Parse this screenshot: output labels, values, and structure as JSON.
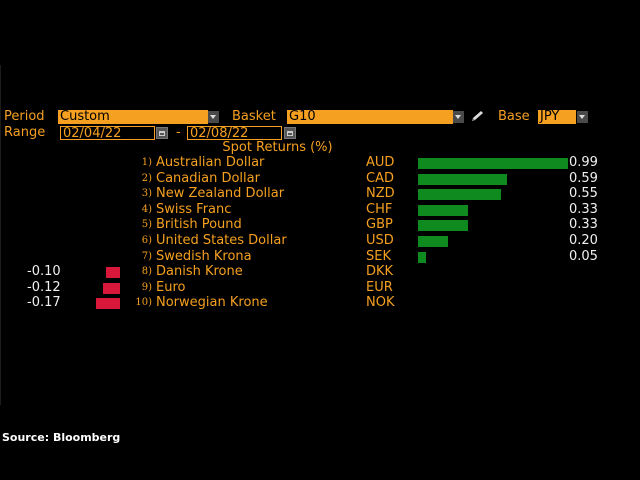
{
  "header": {
    "period_label": "Period",
    "period_value": "Custom",
    "basket_label": "Basket",
    "basket_value": "G10",
    "base_label": "Base",
    "base_value": "JPY",
    "range_label": "Range",
    "range_start": "02/04/22",
    "range_sep": "-",
    "range_end": "02/08/22"
  },
  "chart_data": {
    "type": "bar",
    "title": "Spot Returns (%)",
    "rows": [
      {
        "rank": "1)",
        "name": "Australian Dollar",
        "code": "AUD",
        "value": 0.99
      },
      {
        "rank": "2)",
        "name": "Canadian Dollar",
        "code": "CAD",
        "value": 0.59
      },
      {
        "rank": "3)",
        "name": "New Zealand Dollar",
        "code": "NZD",
        "value": 0.55
      },
      {
        "rank": "4)",
        "name": "Swiss Franc",
        "code": "CHF",
        "value": 0.33
      },
      {
        "rank": "5)",
        "name": "British Pound",
        "code": "GBP",
        "value": 0.33
      },
      {
        "rank": "6)",
        "name": "United States Dollar",
        "code": "USD",
        "value": 0.2
      },
      {
        "rank": "7)",
        "name": "Swedish Krona",
        "code": "SEK",
        "value": 0.05
      },
      {
        "rank": "8)",
        "name": "Danish Krone",
        "code": "DKK",
        "value": -0.1
      },
      {
        "rank": "9)",
        "name": "Euro",
        "code": "EUR",
        "value": -0.12
      },
      {
        "rank": "10)",
        "name": "Norwegian Krone",
        "code": "NOK",
        "value": -0.17
      }
    ],
    "value_labels": [
      "0.99",
      "0.59",
      "0.55",
      "0.33",
      "0.33",
      "0.20",
      "0.05",
      "-0.10",
      "-0.12",
      "-0.17"
    ],
    "colors": {
      "positive": "#0f8a1f",
      "negative": "#d8173a"
    }
  },
  "footer": {
    "source": "Source: Bloomberg"
  }
}
